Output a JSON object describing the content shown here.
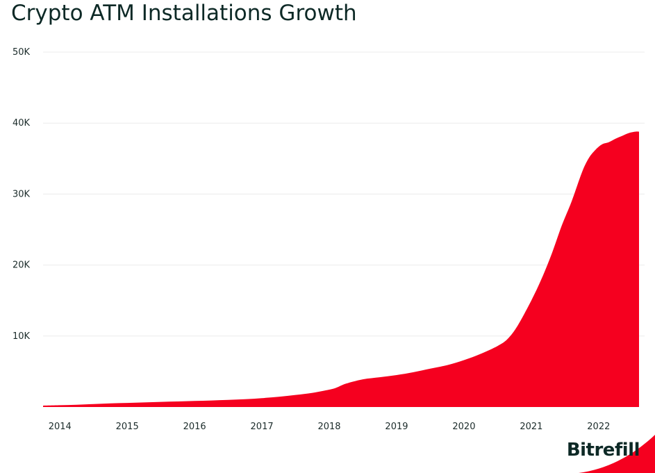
{
  "chart_data": {
    "type": "area",
    "title": "Crypto ATM Installations Growth",
    "xlabel": "",
    "ylabel": "",
    "xlim": [
      2013.75,
      2022.6
    ],
    "ylim": [
      0,
      50000
    ],
    "grid": true,
    "x_ticks": [
      {
        "value": 2014,
        "label": "2014"
      },
      {
        "value": 2015,
        "label": "2015"
      },
      {
        "value": 2016,
        "label": "2016"
      },
      {
        "value": 2017,
        "label": "2017"
      },
      {
        "value": 2018,
        "label": "2018"
      },
      {
        "value": 2019,
        "label": "2019"
      },
      {
        "value": 2020,
        "label": "2020"
      },
      {
        "value": 2021,
        "label": "2021"
      },
      {
        "value": 2022,
        "label": "2022"
      }
    ],
    "y_ticks": [
      {
        "value": 10000,
        "label": "10K"
      },
      {
        "value": 20000,
        "label": "20K"
      },
      {
        "value": 30000,
        "label": "30K"
      },
      {
        "value": 40000,
        "label": "40K"
      },
      {
        "value": 50000,
        "label": "50K"
      }
    ],
    "series": [
      {
        "color": "#f5001f",
        "x": [
          2013.75,
          2014.0,
          2014.25,
          2014.5,
          2014.75,
          2015.0,
          2015.25,
          2015.5,
          2015.75,
          2016.0,
          2016.25,
          2016.5,
          2016.75,
          2017.0,
          2017.25,
          2017.5,
          2017.75,
          2018.0,
          2018.1,
          2018.25,
          2018.5,
          2018.75,
          2019.0,
          2019.25,
          2019.5,
          2019.75,
          2020.0,
          2020.25,
          2020.5,
          2020.65,
          2020.8,
          2021.0,
          2021.15,
          2021.3,
          2021.45,
          2021.6,
          2021.75,
          2021.85,
          2021.95,
          2022.05,
          2022.15,
          2022.25,
          2022.35,
          2022.45,
          2022.55,
          2022.6
        ],
        "y": [
          200,
          250,
          320,
          420,
          520,
          580,
          650,
          720,
          780,
          850,
          920,
          1000,
          1100,
          1250,
          1450,
          1700,
          2000,
          2450,
          2700,
          3300,
          3900,
          4200,
          4500,
          4900,
          5400,
          5900,
          6600,
          7500,
          8600,
          9600,
          11500,
          15000,
          18000,
          21500,
          25500,
          29000,
          33000,
          35000,
          36200,
          37000,
          37300,
          37800,
          38200,
          38600,
          38800,
          38800
        ]
      }
    ]
  },
  "brand": {
    "name": "Bitrefill"
  }
}
